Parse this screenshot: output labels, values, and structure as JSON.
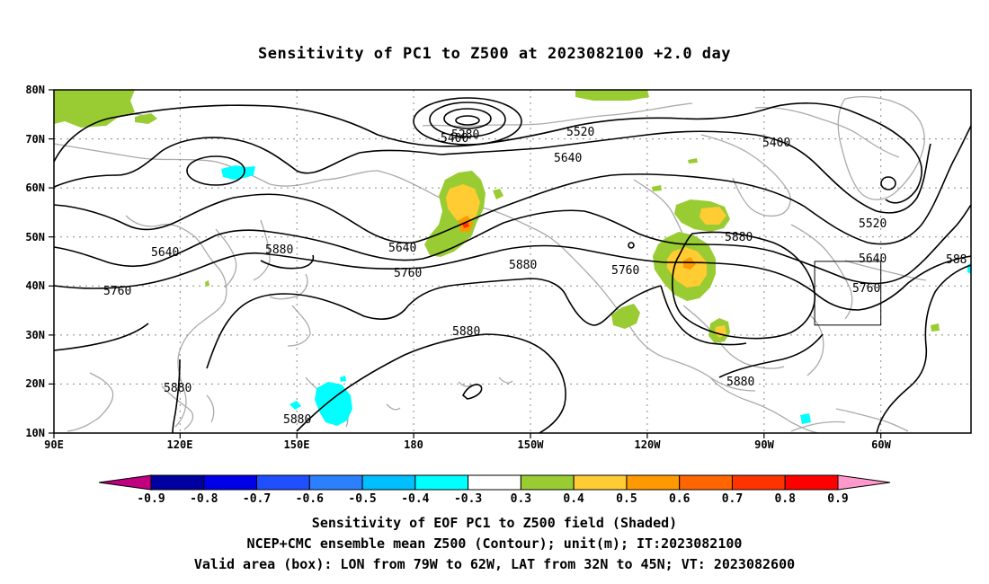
{
  "title": "Sensitivity of PC1 to Z500 at 2023082100 +2.0 day",
  "lat_labels": [
    "80N",
    "70N",
    "60N",
    "50N",
    "40N",
    "30N",
    "20N",
    "10N"
  ],
  "lon_labels": [
    "90E",
    "120E",
    "150E",
    "180",
    "150W",
    "120W",
    "90W",
    "60W"
  ],
  "contour_labels": {
    "c5280": "5280",
    "c5400a": "5400",
    "c5520a": "5520",
    "c5400b": "5400",
    "c5640a": "5640",
    "c5640b": "5640",
    "c5760a": "5760",
    "c5880a": "5880",
    "c5640c": "5640",
    "c5760b": "5760",
    "c5880b": "5880",
    "c5760c": "5760",
    "c5880c": "5880",
    "c5520b": "5520",
    "c5640d": "5640",
    "c5760d": "5760",
    "c5880d": "5880",
    "c5880e": "5880",
    "c5880f": "5880",
    "c5880g": "5880",
    "c58edge": "588"
  },
  "colorbar": {
    "colors": [
      "#c0007f",
      "#0000a0",
      "#0000e6",
      "#1f4fff",
      "#2b80ff",
      "#00bfff",
      "#00ffff",
      "#ffffff",
      "#99cc33",
      "#ffcc33",
      "#ff9900",
      "#ff6600",
      "#ff3300",
      "#ff0000",
      "#ff99cc"
    ],
    "labels": [
      "-0.9",
      "-0.8",
      "-0.7",
      "-0.6",
      "-0.5",
      "-0.4",
      "-0.3",
      "0.3",
      "0.4",
      "0.5",
      "0.6",
      "0.7",
      "0.8",
      "0.9"
    ]
  },
  "footer": {
    "line1": "Sensitivity of EOF PC1 to Z500 field (Shaded)",
    "line2": "NCEP+CMC ensemble mean Z500 (Contour); unit(m); IT:2023082100",
    "line3": "Valid area (box): LON from 79W to 62W, LAT from 32N to 45N; VT: 2023082600"
  },
  "valid_box": {
    "lon_min": -79,
    "lon_max": -62,
    "lat_min": 32,
    "lat_max": 45
  }
}
